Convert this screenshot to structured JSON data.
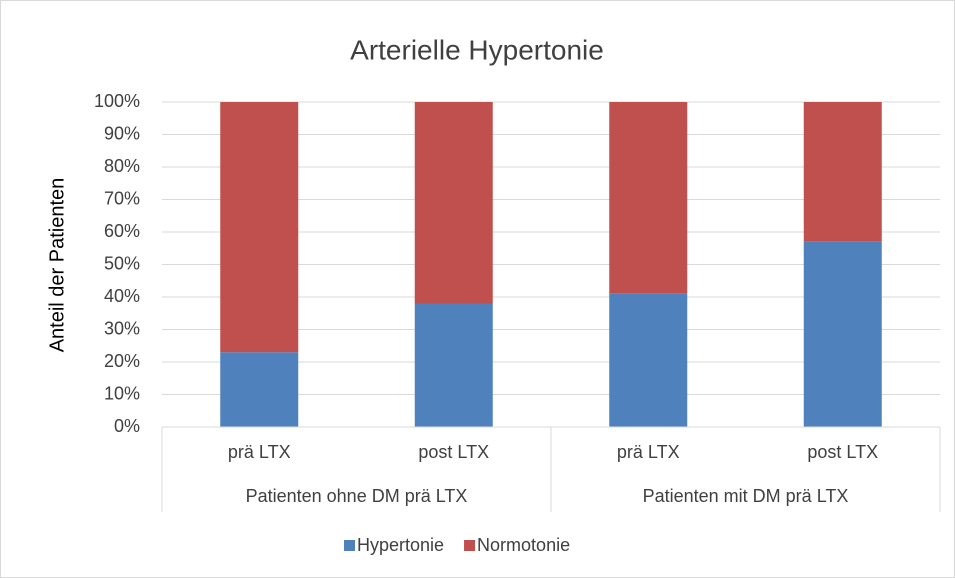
{
  "chart_data": {
    "type": "stacked-bar",
    "title": "Arterielle Hypertonie",
    "y_label": "Anteil der Patienten",
    "categories": [
      "prä LTX",
      "post LTX",
      "prä LTX",
      "post LTX"
    ],
    "groups": [
      "Patienten ohne DM prä LTX",
      "Patienten mit DM prä LTX"
    ],
    "series": [
      {
        "name": "Hypertonie",
        "color": "#4f81bd",
        "values": [
          23,
          38,
          41,
          57
        ]
      },
      {
        "name": "Normotonie",
        "color": "#c0504d",
        "values": [
          77,
          62,
          59,
          43
        ]
      }
    ],
    "ylim": [
      0,
      100
    ],
    "yticks": [
      {
        "value": 0,
        "label": "0%"
      },
      {
        "value": 10,
        "label": "10%"
      },
      {
        "value": 20,
        "label": "20%"
      },
      {
        "value": 30,
        "label": "30%"
      },
      {
        "value": 40,
        "label": "40%"
      },
      {
        "value": 50,
        "label": "50%"
      },
      {
        "value": 60,
        "label": "60%"
      },
      {
        "value": 70,
        "label": "70%"
      },
      {
        "value": 80,
        "label": "80%"
      },
      {
        "value": 90,
        "label": "90%"
      },
      {
        "value": 100,
        "label": "100%"
      }
    ],
    "grid": true,
    "legend": "bottom"
  }
}
